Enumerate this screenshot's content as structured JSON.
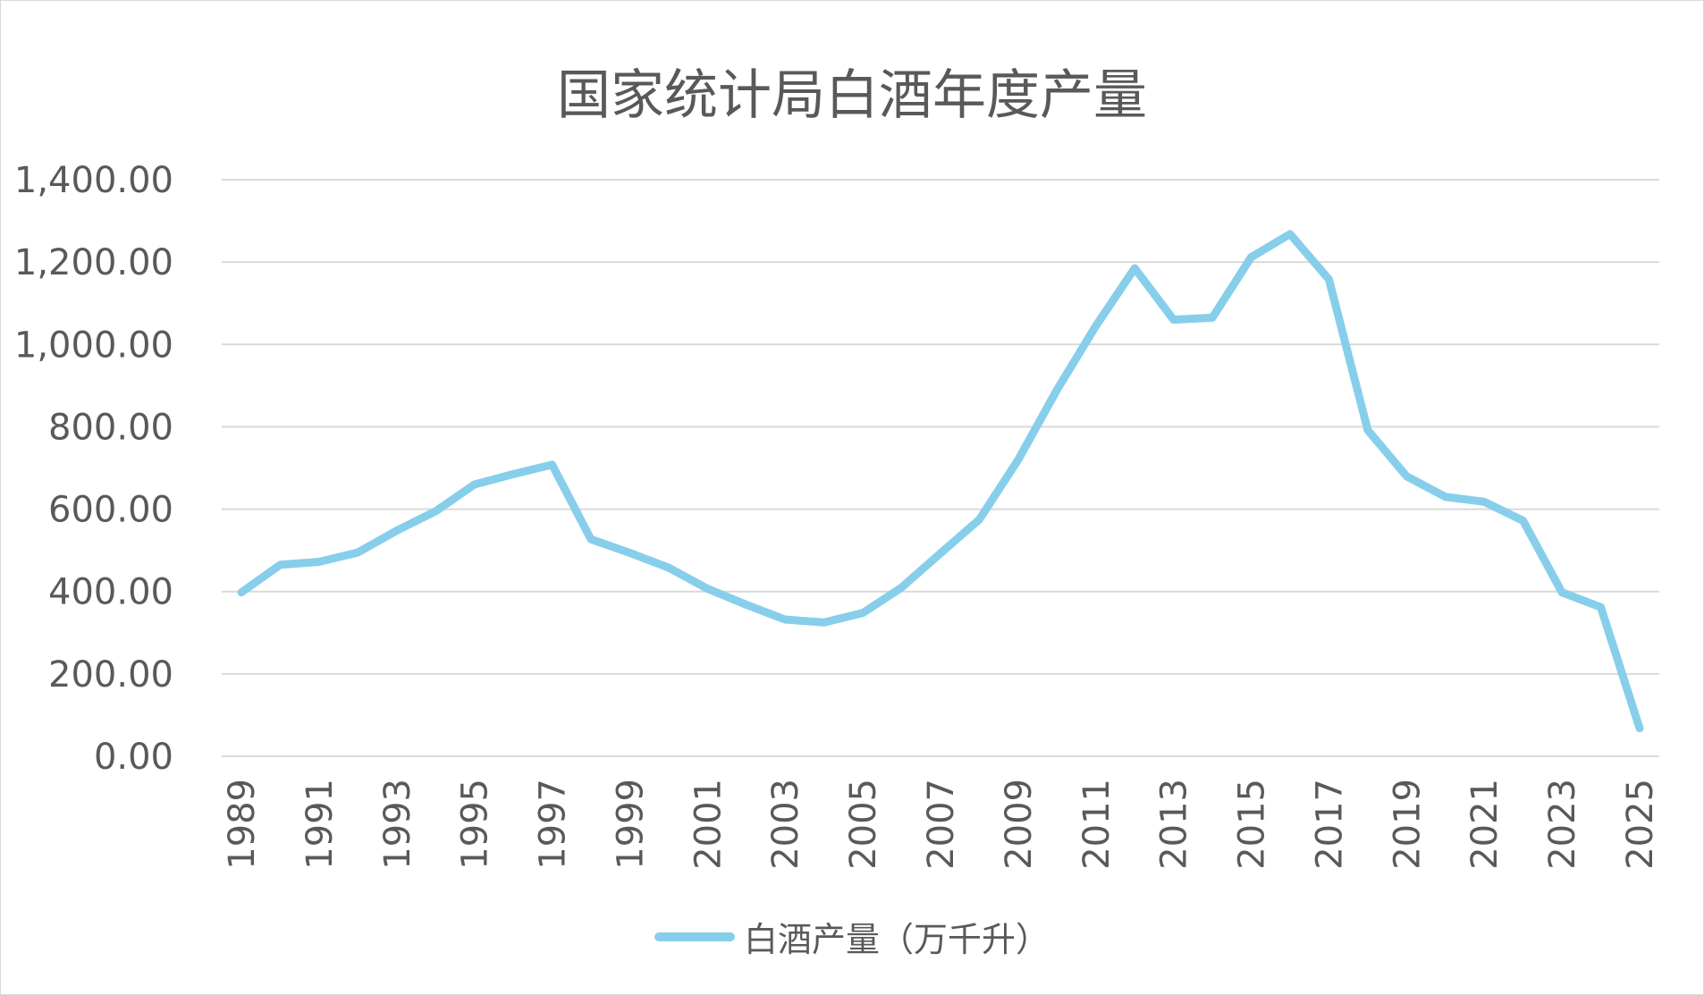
{
  "chart_data": {
    "type": "line",
    "title": "国家统计局白酒年度产量",
    "xlabel": "",
    "ylabel": "",
    "ylim": [
      0,
      1400
    ],
    "y_ticks": [
      "0.00",
      "200.00",
      "400.00",
      "600.00",
      "800.00",
      "1,000.00",
      "1,200.00",
      "1,400.00"
    ],
    "x_tick_labels": [
      "1989",
      "1991",
      "1993",
      "1995",
      "1997",
      "1999",
      "2001",
      "2003",
      "2005",
      "2007",
      "2009",
      "2011",
      "2013",
      "2015",
      "2017",
      "2019",
      "2021",
      "2023",
      "2025"
    ],
    "x": [
      1989,
      1990,
      1991,
      1992,
      1993,
      1994,
      1995,
      1996,
      1997,
      1998,
      1999,
      2000,
      2001,
      2002,
      2003,
      2004,
      2005,
      2006,
      2007,
      2008,
      2009,
      2010,
      2011,
      2012,
      2013,
      2014,
      2015,
      2016,
      2017,
      2018,
      2019,
      2020,
      2021,
      2022,
      2023,
      2024,
      2025
    ],
    "series": [
      {
        "name": "白酒产量（万千升）",
        "color": "#87ceeb",
        "values": [
          398,
          465,
          472,
          495,
          548,
          595,
          660,
          685,
          708,
          527,
          494,
          458,
          407,
          368,
          332,
          325,
          348,
          410,
          493,
          575,
          720,
          890,
          1045,
          1185,
          1060,
          1065,
          1212,
          1268,
          1158,
          792,
          680,
          630,
          618,
          572,
          398,
          362,
          68
        ]
      }
    ],
    "grid": true,
    "legend_position": "bottom"
  }
}
